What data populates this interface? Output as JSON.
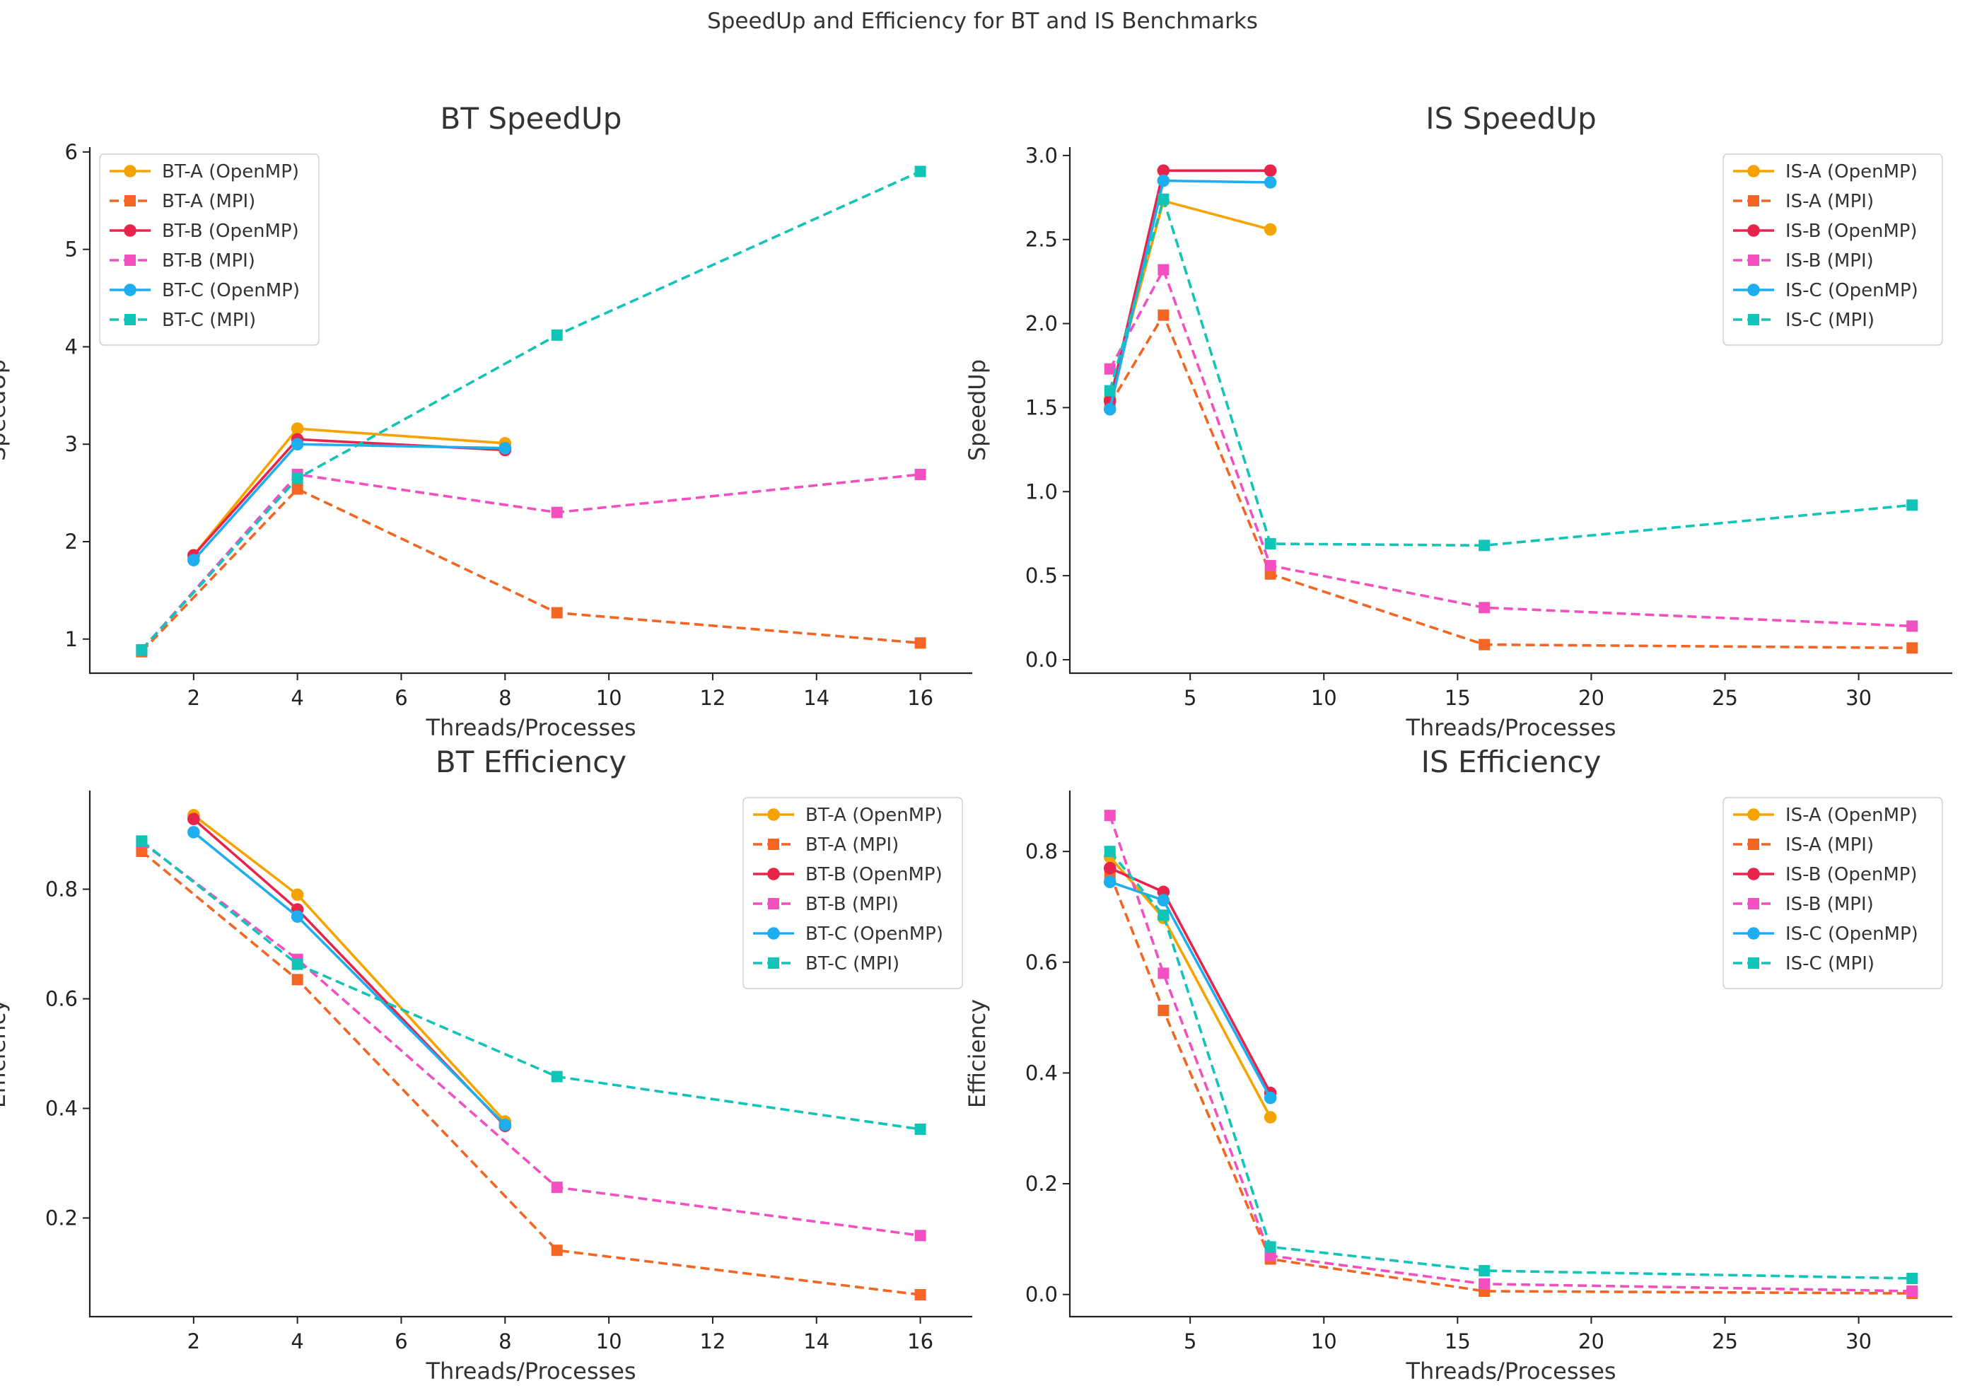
{
  "figure": {
    "title": "SpeedUp and Efficiency for BT and IS Benchmarks"
  },
  "chart_data": [
    {
      "type": "line",
      "title": "BT SpeedUp",
      "xlabel": "Threads/Processes",
      "ylabel": "SpeedUp",
      "xlim": [
        0,
        17
      ],
      "ylim": [
        0.65,
        6.05
      ],
      "xticks": [
        2,
        4,
        6,
        8,
        10,
        12,
        14,
        16
      ],
      "yticks": [
        1,
        2,
        3,
        4,
        5,
        6
      ],
      "yticklabels": [
        "1",
        "2",
        "3",
        "4",
        "5",
        "6"
      ],
      "grid": false,
      "legend": "upper left",
      "series": [
        {
          "name": "BT-A (OpenMP)",
          "x": [
            2,
            4,
            8
          ],
          "y": [
            1.86,
            3.16,
            3.01
          ],
          "color": "#F5A300",
          "dash": false,
          "marker": "circle"
        },
        {
          "name": "BT-A (MPI)",
          "x": [
            1,
            4,
            9,
            16
          ],
          "y": [
            0.87,
            2.54,
            1.27,
            0.96
          ],
          "color": "#F26522",
          "dash": true,
          "marker": "square"
        },
        {
          "name": "BT-B (OpenMP)",
          "x": [
            2,
            4,
            8
          ],
          "y": [
            1.86,
            3.05,
            2.94
          ],
          "color": "#E8244B",
          "dash": false,
          "marker": "circle"
        },
        {
          "name": "BT-B (MPI)",
          "x": [
            1,
            4,
            9,
            16
          ],
          "y": [
            0.89,
            2.69,
            2.3,
            2.69
          ],
          "color": "#F24FC1",
          "dash": true,
          "marker": "square"
        },
        {
          "name": "BT-C (OpenMP)",
          "x": [
            2,
            4,
            8
          ],
          "y": [
            1.81,
            3.0,
            2.96
          ],
          "color": "#1EAEF0",
          "dash": false,
          "marker": "circle"
        },
        {
          "name": "BT-C (MPI)",
          "x": [
            1,
            4,
            9,
            16
          ],
          "y": [
            0.89,
            2.65,
            4.12,
            5.8
          ],
          "color": "#11C4B8",
          "dash": true,
          "marker": "square"
        }
      ]
    },
    {
      "type": "line",
      "title": "IS SpeedUp",
      "xlabel": "Threads/Processes",
      "ylabel": "SpeedUp",
      "xlim": [
        0.5,
        33.5
      ],
      "ylim": [
        -0.08,
        3.05
      ],
      "xticks": [
        5,
        10,
        15,
        20,
        25,
        30
      ],
      "yticks": [
        0,
        0.5,
        1,
        1.5,
        2,
        2.5,
        3
      ],
      "yticklabels": [
        "0.0",
        "0.5",
        "1.0",
        "1.5",
        "2.0",
        "2.5",
        "3.0"
      ],
      "grid": false,
      "legend": "upper right",
      "series": [
        {
          "name": "IS-A (OpenMP)",
          "x": [
            2,
            4,
            8
          ],
          "y": [
            1.55,
            2.73,
            2.56
          ],
          "color": "#F5A300",
          "dash": false,
          "marker": "circle"
        },
        {
          "name": "IS-A (MPI)",
          "x": [
            2,
            4,
            8,
            16,
            32
          ],
          "y": [
            1.52,
            2.05,
            0.51,
            0.09,
            0.07
          ],
          "color": "#F26522",
          "dash": true,
          "marker": "square"
        },
        {
          "name": "IS-B (OpenMP)",
          "x": [
            2,
            4,
            8
          ],
          "y": [
            1.54,
            2.91,
            2.91
          ],
          "color": "#E8244B",
          "dash": false,
          "marker": "circle"
        },
        {
          "name": "IS-B (MPI)",
          "x": [
            2,
            4,
            8,
            16,
            32
          ],
          "y": [
            1.73,
            2.32,
            0.56,
            0.31,
            0.2
          ],
          "color": "#F24FC1",
          "dash": true,
          "marker": "square"
        },
        {
          "name": "IS-C (OpenMP)",
          "x": [
            2,
            4,
            8
          ],
          "y": [
            1.49,
            2.85,
            2.84
          ],
          "color": "#1EAEF0",
          "dash": false,
          "marker": "circle"
        },
        {
          "name": "IS-C (MPI)",
          "x": [
            2,
            4,
            8,
            16,
            32
          ],
          "y": [
            1.6,
            2.74,
            0.69,
            0.68,
            0.92
          ],
          "color": "#11C4B8",
          "dash": true,
          "marker": "square"
        }
      ]
    },
    {
      "type": "line",
      "title": "BT Efficiency",
      "xlabel": "Threads/Processes",
      "ylabel": "Efficiency",
      "xlim": [
        0,
        17
      ],
      "ylim": [
        0.02,
        0.98
      ],
      "xticks": [
        2,
        4,
        6,
        8,
        10,
        12,
        14,
        16
      ],
      "yticks": [
        0.2,
        0.4,
        0.6,
        0.8
      ],
      "yticklabels": [
        "0.2",
        "0.4",
        "0.6",
        "0.8"
      ],
      "grid": false,
      "legend": "upper right",
      "series": [
        {
          "name": "BT-A (OpenMP)",
          "x": [
            2,
            4,
            8
          ],
          "y": [
            0.935,
            0.79,
            0.376
          ],
          "color": "#F5A300",
          "dash": false,
          "marker": "circle"
        },
        {
          "name": "BT-A (MPI)",
          "x": [
            1,
            4,
            9,
            16
          ],
          "y": [
            0.869,
            0.635,
            0.141,
            0.06
          ],
          "color": "#F26522",
          "dash": true,
          "marker": "square"
        },
        {
          "name": "BT-B (OpenMP)",
          "x": [
            2,
            4,
            8
          ],
          "y": [
            0.928,
            0.763,
            0.368
          ],
          "color": "#E8244B",
          "dash": false,
          "marker": "circle"
        },
        {
          "name": "BT-B (MPI)",
          "x": [
            1,
            4,
            9,
            16
          ],
          "y": [
            0.886,
            0.672,
            0.256,
            0.168
          ],
          "color": "#F24FC1",
          "dash": true,
          "marker": "square"
        },
        {
          "name": "BT-C (OpenMP)",
          "x": [
            2,
            4,
            8
          ],
          "y": [
            0.904,
            0.75,
            0.37
          ],
          "color": "#1EAEF0",
          "dash": false,
          "marker": "circle"
        },
        {
          "name": "BT-C (MPI)",
          "x": [
            1,
            4,
            9,
            16
          ],
          "y": [
            0.888,
            0.663,
            0.458,
            0.362
          ],
          "color": "#11C4B8",
          "dash": true,
          "marker": "square"
        }
      ]
    },
    {
      "type": "line",
      "title": "IS Efficiency",
      "xlabel": "Threads/Processes",
      "ylabel": "Efficiency",
      "xlim": [
        0.5,
        33.5
      ],
      "ylim": [
        -0.04,
        0.91
      ],
      "xticks": [
        5,
        10,
        15,
        20,
        25,
        30
      ],
      "yticks": [
        0,
        0.2,
        0.4,
        0.6,
        0.8
      ],
      "yticklabels": [
        "0.0",
        "0.2",
        "0.4",
        "0.6",
        "0.8"
      ],
      "grid": false,
      "legend": "upper right",
      "series": [
        {
          "name": "IS-A (OpenMP)",
          "x": [
            2,
            4,
            8
          ],
          "y": [
            0.79,
            0.68,
            0.32
          ],
          "color": "#F5A300",
          "dash": false,
          "marker": "circle"
        },
        {
          "name": "IS-A (MPI)",
          "x": [
            2,
            4,
            8,
            16,
            32
          ],
          "y": [
            0.76,
            0.513,
            0.064,
            0.006,
            0.002
          ],
          "color": "#F26522",
          "dash": true,
          "marker": "square"
        },
        {
          "name": "IS-B (OpenMP)",
          "x": [
            2,
            4,
            8
          ],
          "y": [
            0.77,
            0.727,
            0.364
          ],
          "color": "#E8244B",
          "dash": false,
          "marker": "circle"
        },
        {
          "name": "IS-B (MPI)",
          "x": [
            2,
            4,
            8,
            16,
            32
          ],
          "y": [
            0.865,
            0.58,
            0.07,
            0.019,
            0.006
          ],
          "color": "#F24FC1",
          "dash": true,
          "marker": "square"
        },
        {
          "name": "IS-C (OpenMP)",
          "x": [
            2,
            4,
            8
          ],
          "y": [
            0.745,
            0.712,
            0.355
          ],
          "color": "#1EAEF0",
          "dash": false,
          "marker": "circle"
        },
        {
          "name": "IS-C (MPI)",
          "x": [
            2,
            4,
            8,
            16,
            32
          ],
          "y": [
            0.8,
            0.685,
            0.086,
            0.043,
            0.029
          ],
          "color": "#11C4B8",
          "dash": true,
          "marker": "square"
        }
      ]
    }
  ]
}
